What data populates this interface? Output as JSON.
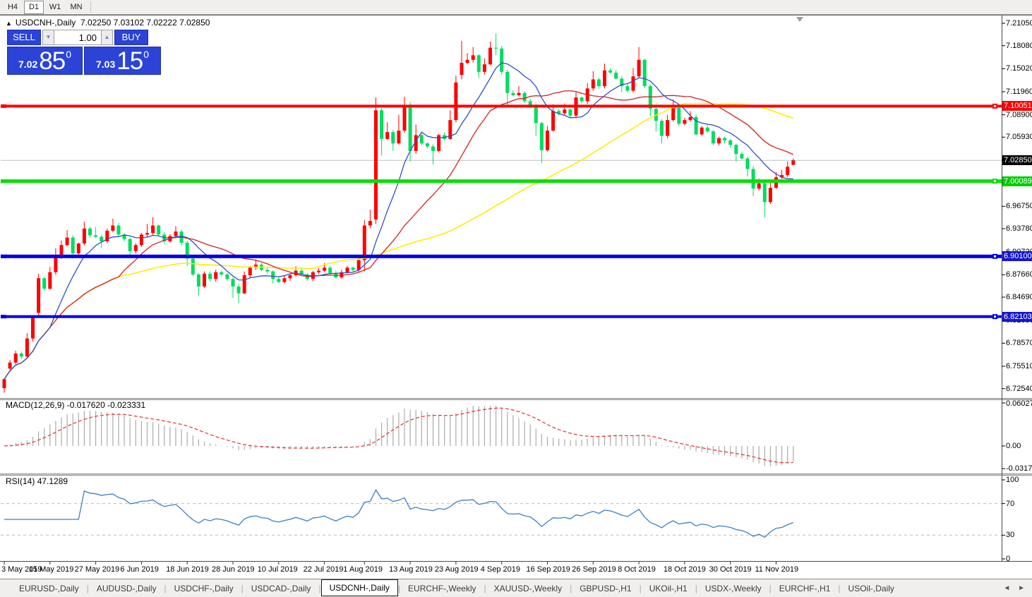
{
  "toolbar": {
    "timeframes": [
      {
        "label": "H4",
        "active": false
      },
      {
        "label": "D1",
        "active": true
      },
      {
        "label": "W1",
        "active": false
      },
      {
        "label": "MN",
        "active": false
      }
    ]
  },
  "window": {
    "marker": "▲",
    "title": "USDCNH-,Daily",
    "quote": "7.02250 7.03102 7.02222 7.02850"
  },
  "trade": {
    "sell_label": "SELL",
    "buy_label": "BUY",
    "volume": "1.00",
    "spin_down": "▼",
    "spin_up": "▲",
    "sell_price_small": "7.02",
    "sell_price_big": "85",
    "sell_price_sup": "0",
    "buy_price_small": "7.03",
    "buy_price_big": "15",
    "buy_price_sup": "0"
  },
  "tabs": [
    {
      "label": "EURUSD-,Daily",
      "active": false
    },
    {
      "label": "AUDUSD-,Daily",
      "active": false
    },
    {
      "label": "USDCHF-,Daily",
      "active": false
    },
    {
      "label": "USDCAD-,Daily",
      "active": false
    },
    {
      "label": "USDCNH-,Daily",
      "active": true
    },
    {
      "label": "EURCHF-,Weekly",
      "active": false
    },
    {
      "label": "XAUUSD-,Weekly",
      "active": false
    },
    {
      "label": "GBPUSD-,H1",
      "active": false
    },
    {
      "label": "UKOil-,H1",
      "active": false
    },
    {
      "label": "USDX-,Weekly",
      "active": false
    },
    {
      "label": "EURCHF-,H1",
      "active": false
    },
    {
      "label": "USOil-,Daily",
      "active": false
    }
  ],
  "tab_nav": {
    "left": "◄",
    "right": "►"
  },
  "chart_data": {
    "type": "candlestick",
    "symbol": "USDCNH-",
    "timeframe": "Daily",
    "quote_ohlc": {
      "open": "7.02250",
      "high": "7.03102",
      "low": "7.02222",
      "close": "7.02850"
    },
    "colors": {
      "up": "#FF0000",
      "down": "#00DC5E",
      "ma_fast": "#2E4FC4",
      "ma_mid": "#D42020",
      "ma_slow": "#FFEE00",
      "macd_bars": "#ABABAB",
      "macd_signal": "#E03030",
      "rsi_line": "#3E7FC1",
      "level_dash": "#BDBDBD",
      "current_line": "#C0C0C0"
    },
    "price_axis_ticks": [
      {
        "label": "7.21050",
        "value": 7.2105
      },
      {
        "label": "7.18080",
        "value": 7.1808
      },
      {
        "label": "7.15020",
        "value": 7.1502
      },
      {
        "label": "7.11960",
        "value": 7.1196
      },
      {
        "label": "7.08900",
        "value": 7.089
      },
      {
        "label": "7.05930",
        "value": 7.0593
      },
      {
        "label": "7.02870",
        "value": 7.0287
      },
      {
        "label": "6.99810",
        "value": 6.9981
      },
      {
        "label": "6.96750",
        "value": 6.9675
      },
      {
        "label": "6.93780",
        "value": 6.9378
      },
      {
        "label": "6.90720",
        "value": 6.9072
      },
      {
        "label": "6.87660",
        "value": 6.8766
      },
      {
        "label": "6.84690",
        "value": 6.8469
      },
      {
        "label": "6.81630",
        "value": 6.8163
      },
      {
        "label": "6.78570",
        "value": 6.7857
      },
      {
        "label": "6.75510",
        "value": 6.7551
      },
      {
        "label": "6.72540",
        "value": 6.7254
      }
    ],
    "price_badges": [
      {
        "label": "7.10051",
        "value": 7.10051,
        "bg": "#FF0000"
      },
      {
        "label": "7.02850",
        "value": 7.0285,
        "bg": "#000000"
      },
      {
        "label": "7.00089",
        "value": 7.00089,
        "bg": "#00CC00"
      },
      {
        "label": "6.90100",
        "value": 6.901,
        "bg": "#1515D0"
      },
      {
        "label": "6.82103",
        "value": 6.82103,
        "bg": "#1515D0"
      }
    ],
    "hlines": [
      {
        "value": 7.10051,
        "color": "#FF0000",
        "thickness": 4
      },
      {
        "value": 7.00089,
        "color": "#00E100",
        "thickness": 5
      },
      {
        "value": 6.901,
        "color": "#0000E6",
        "thickness": 5
      },
      {
        "value": 6.82103,
        "color": "#0000E6",
        "thickness": 4
      }
    ],
    "current_price": 7.0285,
    "moving_averages": [
      {
        "period": 55,
        "color": "#FFEE00",
        "width": 1.6
      },
      {
        "period": 21,
        "color": "#D42020",
        "width": 1.3
      },
      {
        "period": 9,
        "color": "#2E4FC4",
        "width": 1.3
      }
    ],
    "macd": {
      "label": "MACD(12,26,9)",
      "current": "-0.017620 -0.023331",
      "fast": 12,
      "slow": 26,
      "signal": 9,
      "axis_ticks": [
        {
          "label": "0.060273",
          "value": 0.060273
        },
        {
          "label": "0.00",
          "value": 0
        },
        {
          "label": "-0.031725",
          "value": -0.031725
        }
      ]
    },
    "rsi": {
      "label": "RSI(14)",
      "period": 14,
      "current": "47.1289",
      "axis_ticks": [
        {
          "label": "100",
          "value": 100
        },
        {
          "label": "70",
          "value": 70
        },
        {
          "label": "30",
          "value": 30
        },
        {
          "label": "0",
          "value": 0
        }
      ],
      "levels": [
        70,
        30
      ]
    },
    "date_ticks": [
      {
        "label": "3 May 2019",
        "index": 0
      },
      {
        "label": "15 May 2019",
        "index": 8
      },
      {
        "label": "27 May 2019",
        "index": 16
      },
      {
        "label": "6 Jun 2019",
        "index": 24
      },
      {
        "label": "18 Jun 2019",
        "index": 32
      },
      {
        "label": "28 Jun 2019",
        "index": 40
      },
      {
        "label": "10 Jul 2019",
        "index": 48
      },
      {
        "label": "22 Jul 2019",
        "index": 56
      },
      {
        "label": "1 Aug 2019",
        "index": 63
      },
      {
        "label": "13 Aug 2019",
        "index": 71
      },
      {
        "label": "23 Aug 2019",
        "index": 79
      },
      {
        "label": "4 Sep 2019",
        "index": 87
      },
      {
        "label": "16 Sep 2019",
        "index": 95
      },
      {
        "label": "26 Sep 2019",
        "index": 103
      },
      {
        "label": "8 Oct 2019",
        "index": 111
      },
      {
        "label": "18 Oct 2019",
        "index": 119
      },
      {
        "label": "30 Oct 2019",
        "index": 127
      },
      {
        "label": "11 Nov 2019",
        "index": 135
      }
    ],
    "candles_ohlc": [
      [
        6.726,
        null,
        6.72,
        6.738
      ],
      [
        6.752,
        null,
        null,
        6.76
      ],
      [
        6.76,
        null,
        null,
        6.772
      ],
      [
        6.772,
        null,
        null,
        6.768
      ],
      [
        6.768,
        6.799,
        null,
        6.792
      ],
      [
        6.792,
        null,
        6.788,
        6.82
      ],
      [
        6.826,
        6.878,
        6.822,
        6.872
      ],
      [
        6.872,
        null,
        null,
        6.858
      ],
      [
        6.858,
        6.887,
        null,
        6.88
      ],
      [
        6.88,
        6.912,
        null,
        6.9
      ],
      [
        6.9,
        6.922,
        null,
        6.916
      ],
      [
        6.916,
        6.936,
        null,
        6.926
      ],
      [
        6.926,
        null,
        6.898,
        6.905
      ],
      [
        6.905,
        null,
        null,
        6.918
      ],
      [
        6.918,
        6.947,
        null,
        6.938
      ],
      [
        6.938,
        null,
        null,
        6.929
      ],
      [
        6.929,
        6.94,
        null,
        6.927
      ],
      [
        6.927,
        null,
        6.912,
        6.921
      ],
      [
        6.921,
        null,
        null,
        6.935
      ],
      [
        6.935,
        6.951,
        null,
        6.942
      ],
      [
        6.942,
        null,
        null,
        6.93
      ],
      [
        6.93,
        null,
        null,
        6.924
      ],
      [
        6.924,
        null,
        6.9,
        6.908
      ],
      [
        6.908,
        null,
        null,
        6.916
      ],
      [
        6.916,
        null,
        null,
        6.93
      ],
      [
        6.93,
        6.944,
        null,
        6.932
      ],
      [
        6.932,
        6.953,
        null,
        6.942
      ],
      [
        6.942,
        null,
        null,
        6.93
      ],
      [
        6.93,
        null,
        null,
        6.921
      ],
      [
        6.921,
        null,
        null,
        6.928
      ],
      [
        6.928,
        6.941,
        null,
        6.934
      ],
      [
        6.934,
        null,
        null,
        6.919
      ],
      [
        6.919,
        null,
        6.888,
        6.898
      ],
      [
        6.898,
        null,
        null,
        6.877
      ],
      [
        6.877,
        null,
        6.849,
        6.861
      ],
      [
        6.861,
        null,
        null,
        6.878
      ],
      [
        6.878,
        null,
        null,
        6.871
      ],
      [
        6.871,
        null,
        null,
        6.88
      ],
      [
        6.88,
        null,
        null,
        6.877
      ],
      [
        6.877,
        null,
        null,
        6.871
      ],
      [
        6.871,
        null,
        6.846,
        6.861
      ],
      [
        6.861,
        null,
        6.839,
        6.852
      ],
      [
        6.852,
        6.881,
        null,
        6.876
      ],
      [
        6.876,
        null,
        null,
        6.886
      ],
      [
        6.886,
        6.897,
        null,
        6.89
      ],
      [
        6.89,
        null,
        null,
        6.883
      ],
      [
        6.883,
        null,
        null,
        6.881
      ],
      [
        6.881,
        null,
        6.865,
        6.871
      ],
      [
        6.871,
        null,
        null,
        6.867
      ],
      [
        6.867,
        null,
        null,
        6.872
      ],
      [
        6.872,
        null,
        null,
        6.876
      ],
      [
        6.876,
        6.888,
        null,
        6.882
      ],
      [
        6.882,
        null,
        null,
        6.877
      ],
      [
        6.877,
        null,
        null,
        6.871
      ],
      [
        6.871,
        null,
        null,
        6.88
      ],
      [
        6.88,
        null,
        null,
        6.882
      ],
      [
        6.882,
        6.892,
        null,
        6.886
      ],
      [
        6.886,
        null,
        null,
        6.879
      ],
      [
        6.879,
        null,
        null,
        6.873
      ],
      [
        6.873,
        null,
        null,
        6.88
      ],
      [
        6.88,
        null,
        null,
        6.886
      ],
      [
        6.886,
        null,
        null,
        6.883
      ],
      [
        6.883,
        6.903,
        null,
        6.896
      ],
      [
        6.896,
        6.949,
        6.881,
        6.942
      ],
      [
        6.942,
        6.963,
        null,
        6.948
      ],
      [
        6.95,
        7.112,
        6.944,
        7.095
      ],
      [
        7.095,
        null,
        7.035,
        7.057
      ],
      [
        7.057,
        7.079,
        null,
        7.066
      ],
      [
        7.066,
        null,
        7.041,
        7.051
      ],
      [
        7.051,
        7.089,
        null,
        7.068
      ],
      [
        7.068,
        7.113,
        null,
        7.102
      ],
      [
        7.102,
        null,
        7.027,
        7.041
      ],
      [
        7.041,
        7.076,
        null,
        7.062
      ],
      [
        7.062,
        null,
        null,
        7.051
      ],
      [
        7.051,
        null,
        null,
        7.047
      ],
      [
        7.047,
        null,
        7.023,
        7.041
      ],
      [
        7.041,
        null,
        null,
        7.062
      ],
      [
        7.062,
        null,
        null,
        7.057
      ],
      [
        7.057,
        7.095,
        null,
        7.082
      ],
      [
        7.082,
        7.141,
        null,
        7.132
      ],
      [
        7.142,
        7.187,
        7.136,
        7.158
      ],
      [
        7.158,
        7.171,
        null,
        7.162
      ],
      [
        7.162,
        7.179,
        null,
        7.168
      ],
      [
        7.168,
        null,
        7.138,
        7.146
      ],
      [
        7.146,
        7.164,
        null,
        7.156
      ],
      [
        7.156,
        7.186,
        null,
        7.178
      ],
      [
        7.178,
        7.197,
        7.168,
        7.177
      ],
      [
        7.177,
        null,
        null,
        7.146
      ],
      [
        7.146,
        null,
        7.101,
        7.118
      ],
      [
        7.118,
        null,
        null,
        7.115
      ],
      [
        7.115,
        7.127,
        null,
        7.118
      ],
      [
        7.118,
        null,
        null,
        7.107
      ],
      [
        7.107,
        null,
        null,
        7.101
      ],
      [
        7.101,
        null,
        7.061,
        7.078
      ],
      [
        7.078,
        null,
        7.025,
        7.042
      ],
      [
        7.042,
        7.074,
        null,
        7.068
      ],
      [
        7.068,
        7.103,
        null,
        7.094
      ],
      [
        7.094,
        null,
        null,
        7.091
      ],
      [
        7.091,
        7.104,
        null,
        7.096
      ],
      [
        7.096,
        null,
        null,
        7.088
      ],
      [
        7.088,
        7.119,
        null,
        7.112
      ],
      [
        7.112,
        null,
        null,
        7.107
      ],
      [
        7.107,
        7.131,
        null,
        7.124
      ],
      [
        7.124,
        7.147,
        null,
        7.136
      ],
      [
        7.136,
        null,
        null,
        7.127
      ],
      [
        7.127,
        7.157,
        null,
        7.148
      ],
      [
        7.148,
        null,
        null,
        7.145
      ],
      [
        7.145,
        null,
        null,
        7.137
      ],
      [
        7.137,
        null,
        7.119,
        7.127
      ],
      [
        7.127,
        null,
        null,
        7.121
      ],
      [
        7.121,
        7.151,
        null,
        7.14
      ],
      [
        7.14,
        7.179,
        null,
        7.162
      ],
      [
        7.162,
        null,
        null,
        7.127
      ],
      [
        7.127,
        null,
        7.087,
        7.097
      ],
      [
        7.097,
        null,
        7.067,
        7.081
      ],
      [
        7.081,
        null,
        7.051,
        7.061
      ],
      [
        7.061,
        7.089,
        null,
        7.082
      ],
      [
        7.082,
        7.109,
        null,
        7.098
      ],
      [
        7.098,
        null,
        null,
        7.077
      ],
      [
        7.077,
        null,
        null,
        7.082
      ],
      [
        7.082,
        7.094,
        null,
        7.086
      ],
      [
        7.086,
        null,
        null,
        7.063
      ],
      [
        7.063,
        null,
        null,
        7.072
      ],
      [
        7.072,
        null,
        null,
        7.067
      ],
      [
        7.067,
        null,
        null,
        7.051
      ],
      [
        7.051,
        null,
        null,
        7.058
      ],
      [
        7.058,
        null,
        null,
        7.055
      ],
      [
        7.055,
        null,
        null,
        7.049
      ],
      [
        7.049,
        null,
        7.027,
        7.037
      ],
      [
        7.037,
        null,
        null,
        7.031
      ],
      [
        7.031,
        null,
        7.007,
        7.017
      ],
      [
        7.017,
        null,
        6.981,
        6.991
      ],
      [
        6.991,
        7.004,
        null,
        6.998
      ],
      [
        6.998,
        null,
        6.953,
        6.973
      ],
      [
        6.973,
        6.999,
        null,
        6.992
      ],
      [
        6.992,
        7.013,
        null,
        7.006
      ],
      [
        7.006,
        7.016,
        null,
        7.009
      ],
      [
        7.009,
        7.027,
        null,
        7.02
      ],
      [
        7.0225,
        7.031,
        7.0222,
        7.0285
      ]
    ]
  }
}
